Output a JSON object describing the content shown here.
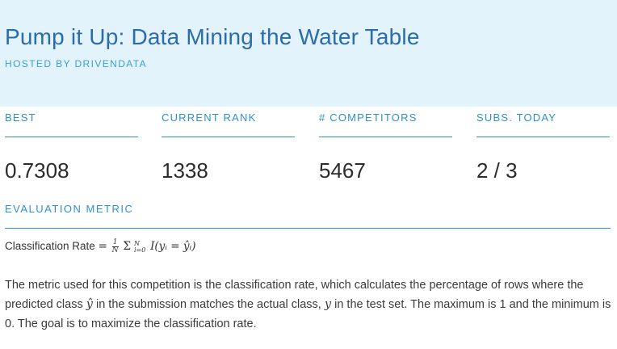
{
  "competition": {
    "title": "Pump it Up: Data Mining the Water Table",
    "host": "HOSTED BY DRIVENDATA"
  },
  "stats": [
    {
      "label": "BEST",
      "value": "0.7308"
    },
    {
      "label": "CURRENT RANK",
      "value": "1338"
    },
    {
      "label": "# COMPETITORS",
      "value": "5467"
    },
    {
      "label": "SUBS. TODAY",
      "value": "2 / 3"
    }
  ],
  "evaluation": {
    "heading": "EVALUATION METRIC",
    "formula_label": "Classification Rate",
    "formula": {
      "eq": "=",
      "frac_num": "1",
      "frac_den": "N",
      "sum": "Σ",
      "sum_upper": "N",
      "sum_lower": "i=0",
      "expr": "I(yᵢ = ŷᵢ)"
    },
    "description_1": "The metric used for this competition is the classification rate, which calculates the percentage of rows where the predicted class",
    "yhat": "ŷ",
    "description_2": "in the submission matches the actual class,",
    "y": "y",
    "description_3": "in the test set. The maximum is 1 and the minimum is 0. The goal is to maximize the classification rate."
  }
}
